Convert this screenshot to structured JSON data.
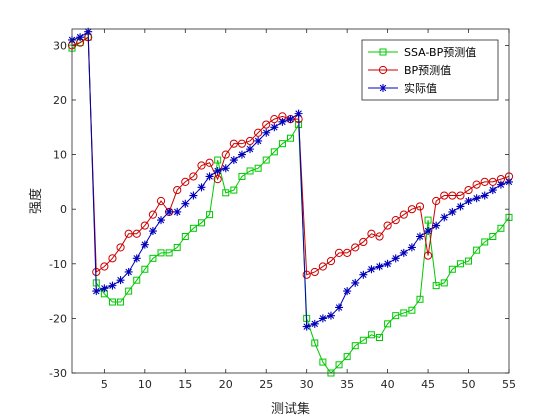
{
  "chart_data": {
    "type": "line",
    "title": "",
    "xlabel": "测试集",
    "ylabel": "强度",
    "xlim": [
      1,
      55
    ],
    "ylim": [
      -30,
      33
    ],
    "xticks": [
      5,
      10,
      15,
      20,
      25,
      30,
      35,
      40,
      45,
      50,
      55
    ],
    "yticks": [
      -30,
      -20,
      -10,
      0,
      10,
      20,
      30
    ],
    "grid": false,
    "legend_position": "top-right",
    "x": [
      1,
      2,
      3,
      4,
      5,
      6,
      7,
      8,
      9,
      10,
      11,
      12,
      13,
      14,
      15,
      16,
      17,
      18,
      19,
      20,
      21,
      22,
      23,
      24,
      25,
      26,
      27,
      28,
      29,
      30,
      31,
      32,
      33,
      34,
      35,
      36,
      37,
      38,
      39,
      40,
      41,
      42,
      43,
      44,
      45,
      46,
      47,
      48,
      49,
      50,
      51,
      52,
      53,
      54,
      55
    ],
    "series": [
      {
        "name": "SSA-BP预测值",
        "color": "#00c800",
        "marker": "square",
        "values": [
          29.5,
          30.5,
          31.5,
          -13.5,
          -15.5,
          -17,
          -17,
          -15,
          -13,
          -11,
          -9,
          -8,
          -8,
          -7,
          -5,
          -3.5,
          -2.5,
          -1,
          9,
          3,
          3.5,
          6,
          7,
          7.5,
          9,
          10.5,
          12,
          13,
          15.5,
          -20,
          -24.5,
          -28,
          -30,
          -28.5,
          -27,
          -25,
          -24,
          -23,
          -23.5,
          -21,
          -19.5,
          -19,
          -18.5,
          -16.5,
          -2,
          -14,
          -13.5,
          -11,
          -10,
          -9.5,
          -7.5,
          -6,
          -5,
          -3.5,
          -1.5
        ]
      },
      {
        "name": "BP预测值",
        "color": "#cc0000",
        "marker": "circle",
        "values": [
          30,
          30.5,
          31.5,
          -11.5,
          -10.5,
          -9,
          -7,
          -4.5,
          -4.5,
          -3,
          -1,
          1.5,
          -0.5,
          3.5,
          5,
          6,
          8,
          8.5,
          5.5,
          10,
          12,
          12,
          12.5,
          14,
          15.5,
          16.5,
          17,
          16.5,
          16.5,
          -12,
          -11.5,
          -10.5,
          -9.5,
          -8,
          -8,
          -7,
          -6,
          -4.5,
          -5,
          -3,
          -2,
          -1,
          0,
          0.5,
          -8.5,
          1.5,
          2.5,
          2.5,
          2.5,
          3.5,
          4.5,
          5,
          5,
          5.5,
          6
        ]
      },
      {
        "name": "实际值",
        "color": "#0000bb",
        "marker": "star",
        "values": [
          31,
          31.5,
          32.5,
          -15,
          -14.5,
          -14,
          -13,
          -11.5,
          -9,
          -6.5,
          -4,
          -2,
          -0.5,
          -0.5,
          1,
          2.5,
          4,
          6,
          7,
          7.5,
          9,
          10,
          11,
          12.5,
          14,
          15,
          16,
          16.5,
          17.5,
          -21.5,
          -21,
          -20,
          -19.5,
          -18,
          -15,
          -13.5,
          -12,
          -11,
          -10.5,
          -10,
          -9,
          -8,
          -7,
          -5,
          -4,
          -3,
          -1.5,
          -0.5,
          0.5,
          1.5,
          2,
          2.5,
          3.5,
          4.5,
          5
        ]
      }
    ]
  }
}
